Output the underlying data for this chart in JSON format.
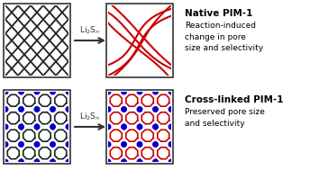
{
  "bg_color": "#ffffff",
  "box_color": "#333333",
  "native_before_line_color": "#222222",
  "native_after_line_color": "#cc0000",
  "crosslinked_line_color": "#222222",
  "crosslinked_after_line_color": "#cc0000",
  "node_color": "#0000cc",
  "arrow_color": "#333333",
  "arrow_label": "Li$_2$S$_n$",
  "title_native": "Native PIM-1",
  "desc_native": "Reaction-induced\nchange in pore\nsize and selectivity",
  "title_crosslinked": "Cross-linked PIM-1",
  "desc_crosslinked": "Preserved pore size\nand selectivity",
  "title_fontsize": 7.5,
  "desc_fontsize": 6.5
}
